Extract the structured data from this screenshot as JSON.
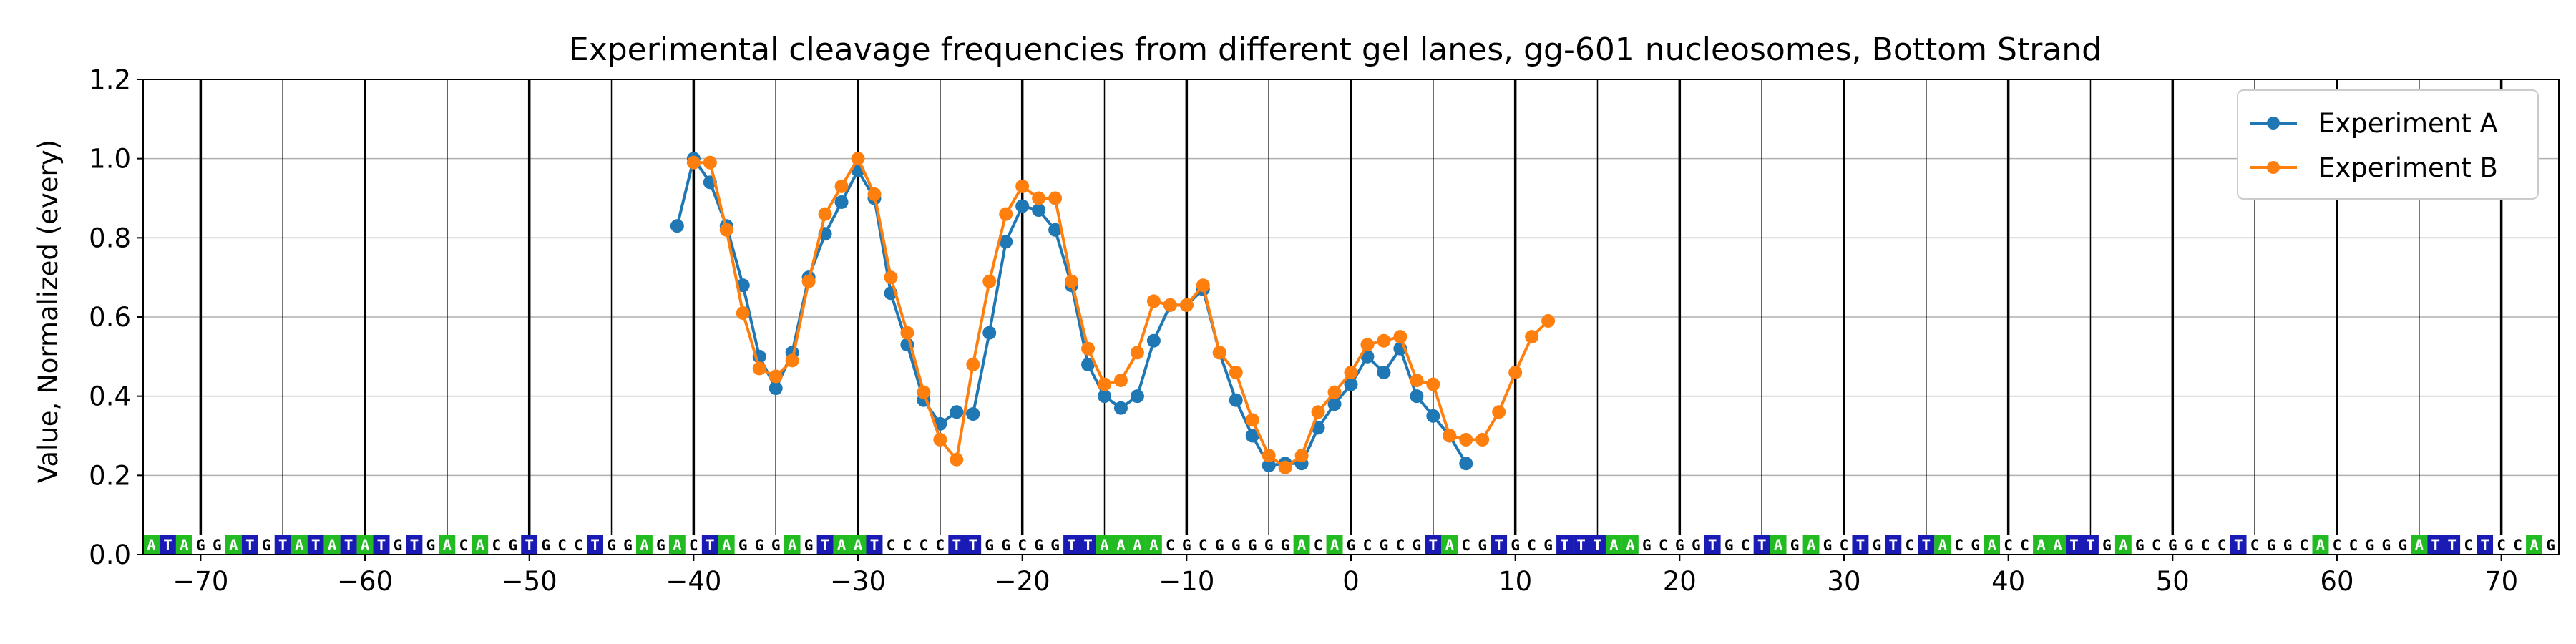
{
  "chart_data": {
    "type": "line",
    "title": "Experimental cleavage frequencies from different gel lanes, gg-601 nucleosomes, Bottom Strand",
    "xlabel": "",
    "ylabel": "Value, Normalized (every)",
    "xlim": [
      -73.5,
      73.5
    ],
    "ylim": [
      0.0,
      1.2
    ],
    "xticks": [
      -70,
      -60,
      -50,
      -40,
      -30,
      -20,
      -10,
      0,
      10,
      20,
      30,
      40,
      50,
      60,
      70
    ],
    "xtick_labels": [
      "−70",
      "−60",
      "−50",
      "−40",
      "−30",
      "−20",
      "−10",
      "0",
      "10",
      "20",
      "30",
      "40",
      "50",
      "60",
      "70"
    ],
    "yticks": [
      0.0,
      0.2,
      0.4,
      0.6,
      0.8,
      1.0,
      1.2
    ],
    "ytick_labels": [
      "0.0",
      "0.2",
      "0.4",
      "0.6",
      "0.8",
      "1.0",
      "1.2"
    ],
    "grid": "horizontal lines at y ticks; vertical lines at every 5 positions (bold every 10)",
    "legend_position": "top-right",
    "series": [
      {
        "name": "Experiment A",
        "color": "#1f77b4",
        "x": [
          -41,
          -40,
          -39,
          -38,
          -37,
          -36,
          -35,
          -34,
          -33,
          -32,
          -31,
          -30,
          -29,
          -28,
          -27,
          -26,
          -25,
          -24,
          -23,
          -22,
          -21,
          -20,
          -19,
          -18,
          -17,
          -16,
          -15,
          -14,
          -13,
          -12,
          -11,
          -10,
          -9,
          -8,
          -7,
          -6,
          -5,
          -4,
          -3,
          -2,
          -1,
          0,
          1,
          2,
          3,
          4,
          5,
          6,
          7
        ],
        "y": [
          0.83,
          1.0,
          0.94,
          0.83,
          0.68,
          0.5,
          0.42,
          0.51,
          0.7,
          0.81,
          0.89,
          0.97,
          0.9,
          0.66,
          0.53,
          0.39,
          0.33,
          0.36,
          0.355,
          0.56,
          0.79,
          0.88,
          0.87,
          0.82,
          0.68,
          0.48,
          0.4,
          0.37,
          0.4,
          0.54,
          0.63,
          0.63,
          0.67,
          0.51,
          0.39,
          0.3,
          0.225,
          0.23,
          0.23,
          0.32,
          0.38,
          0.43,
          0.5,
          0.46,
          0.52,
          0.4,
          0.35,
          0.3,
          0.23
        ]
      },
      {
        "name": "Experiment B",
        "color": "#ff7f0e",
        "x": [
          -40,
          -39,
          -38,
          -37,
          -36,
          -35,
          -34,
          -33,
          -32,
          -31,
          -30,
          -29,
          -28,
          -27,
          -26,
          -25,
          -24,
          -23,
          -22,
          -21,
          -20,
          -19,
          -18,
          -17,
          -16,
          -15,
          -14,
          -13,
          -12,
          -11,
          -10,
          -9,
          -8,
          -7,
          -6,
          -5,
          -4,
          -3,
          -2,
          -1,
          0,
          1,
          2,
          3,
          4,
          5,
          6,
          7,
          8,
          9,
          10,
          11,
          12
        ],
        "y": [
          0.99,
          0.99,
          0.82,
          0.61,
          0.47,
          0.45,
          0.49,
          0.69,
          0.86,
          0.93,
          1.0,
          0.91,
          0.7,
          0.56,
          0.41,
          0.29,
          0.24,
          0.48,
          0.69,
          0.86,
          0.93,
          0.9,
          0.9,
          0.69,
          0.52,
          0.43,
          0.44,
          0.51,
          0.64,
          0.63,
          0.63,
          0.68,
          0.51,
          0.46,
          0.34,
          0.25,
          0.22,
          0.25,
          0.36,
          0.41,
          0.46,
          0.53,
          0.54,
          0.55,
          0.44,
          0.43,
          0.3,
          0.29,
          0.29,
          0.36,
          0.46,
          0.55,
          0.59
        ]
      }
    ],
    "sequence": {
      "start": -73,
      "bases": "ATAGGATGTATATATGTGACACGTGCCTGGAGACTAGGGAGTAATCCCCTTGGCGGTTAAAACGCGGGGGACAGCGCGTACGTGCGTTTAAGCGGTGCTAGAGCTGTCTACGACCAATTGAGCGGCCTCGGCACCGGGATTCTCCAG",
      "colors": {
        "A": "#22bb22",
        "T": "#1a1ab4",
        "G": "#ffffff",
        "C": "#ffffff"
      }
    }
  }
}
